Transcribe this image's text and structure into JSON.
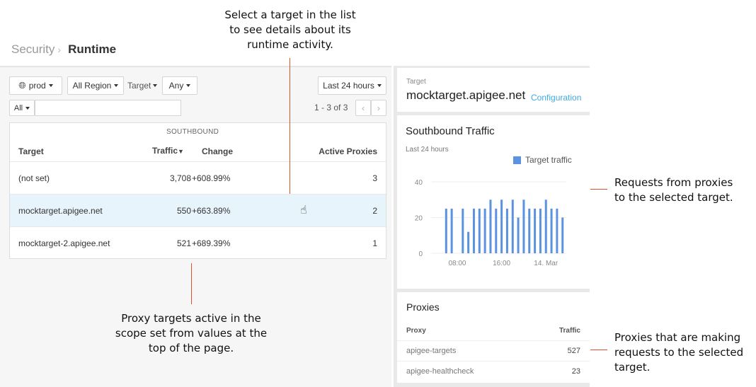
{
  "breadcrumb": {
    "parent": "Security",
    "current": "Runtime"
  },
  "filters": {
    "env": "prod",
    "region": "All Region",
    "target_label": "Target",
    "target_value": "Any",
    "search_scope": "All",
    "search_value": "",
    "time_range": "Last 24 hours",
    "pagination": "1 - 3 of 3"
  },
  "table": {
    "group_header": "SOUTHBOUND",
    "columns": [
      "Target",
      "Traffic",
      "Change",
      "Active Proxies"
    ],
    "sort_indicator": "▼",
    "rows": [
      {
        "target": "(not set)",
        "traffic": "3,708",
        "change": "+608.99%",
        "active_proxies": "3"
      },
      {
        "target": "mocktarget.apigee.net",
        "traffic": "550",
        "change": "+663.89%",
        "active_proxies": "2",
        "selected": true
      },
      {
        "target": "mocktarget-2.apigee.net",
        "traffic": "521",
        "change": "+689.39%",
        "active_proxies": "1"
      }
    ]
  },
  "detail": {
    "label": "Target",
    "name": "mocktarget.apigee.net",
    "config_link": "Configuration"
  },
  "chart_data": {
    "type": "bar",
    "title": "Southbound Traffic",
    "subtitle": "Last 24 hours",
    "legend": [
      "Target traffic"
    ],
    "legend_placement": "top-right",
    "x": [
      "06:00",
      "07:00",
      "08:00",
      "09:00",
      "10:00",
      "11:00",
      "12:00",
      "13:00",
      "14:00",
      "15:00",
      "16:00",
      "17:00",
      "18:00",
      "19:00",
      "20:00",
      "21:00",
      "22:00",
      "23:00",
      "00:00",
      "01:00",
      "02:00",
      "03:00"
    ],
    "series": [
      {
        "name": "Target traffic",
        "values": [
          25,
          25,
          null,
          25,
          12,
          25,
          25,
          25,
          30,
          25,
          30,
          25,
          30,
          20,
          30,
          25,
          25,
          25,
          30,
          25,
          25,
          20
        ]
      }
    ],
    "x_ticks": [
      {
        "at": "08:00",
        "label": "08:00"
      },
      {
        "at": "16:00",
        "label": "16:00"
      },
      {
        "at": "00:00",
        "label": "14. Mar"
      }
    ],
    "y_ticks": [
      "0",
      "20",
      "40"
    ],
    "ylim": [
      0,
      40
    ],
    "grid": true,
    "color": "#5b93e0"
  },
  "proxies": {
    "title": "Proxies",
    "columns": [
      "Proxy",
      "Traffic"
    ],
    "rows": [
      {
        "proxy": "apigee-targets",
        "traffic": "527"
      },
      {
        "proxy": "apigee-healthcheck",
        "traffic": "23"
      }
    ]
  },
  "annotations": {
    "top": [
      "Select a target in the list",
      "to see details about its",
      "runtime activity."
    ],
    "bottom": [
      "Proxy targets active in the",
      "scope set from values at the",
      "top of the page."
    ],
    "chart": [
      "Requests from proxies",
      "to the selected target."
    ],
    "proxies": [
      "Proxies that are making",
      "requests to the selected",
      "target."
    ]
  },
  "colors": {
    "accent": "#3fa9e0",
    "selected_row": "#e8f4fb",
    "callout": "#e0522c"
  }
}
